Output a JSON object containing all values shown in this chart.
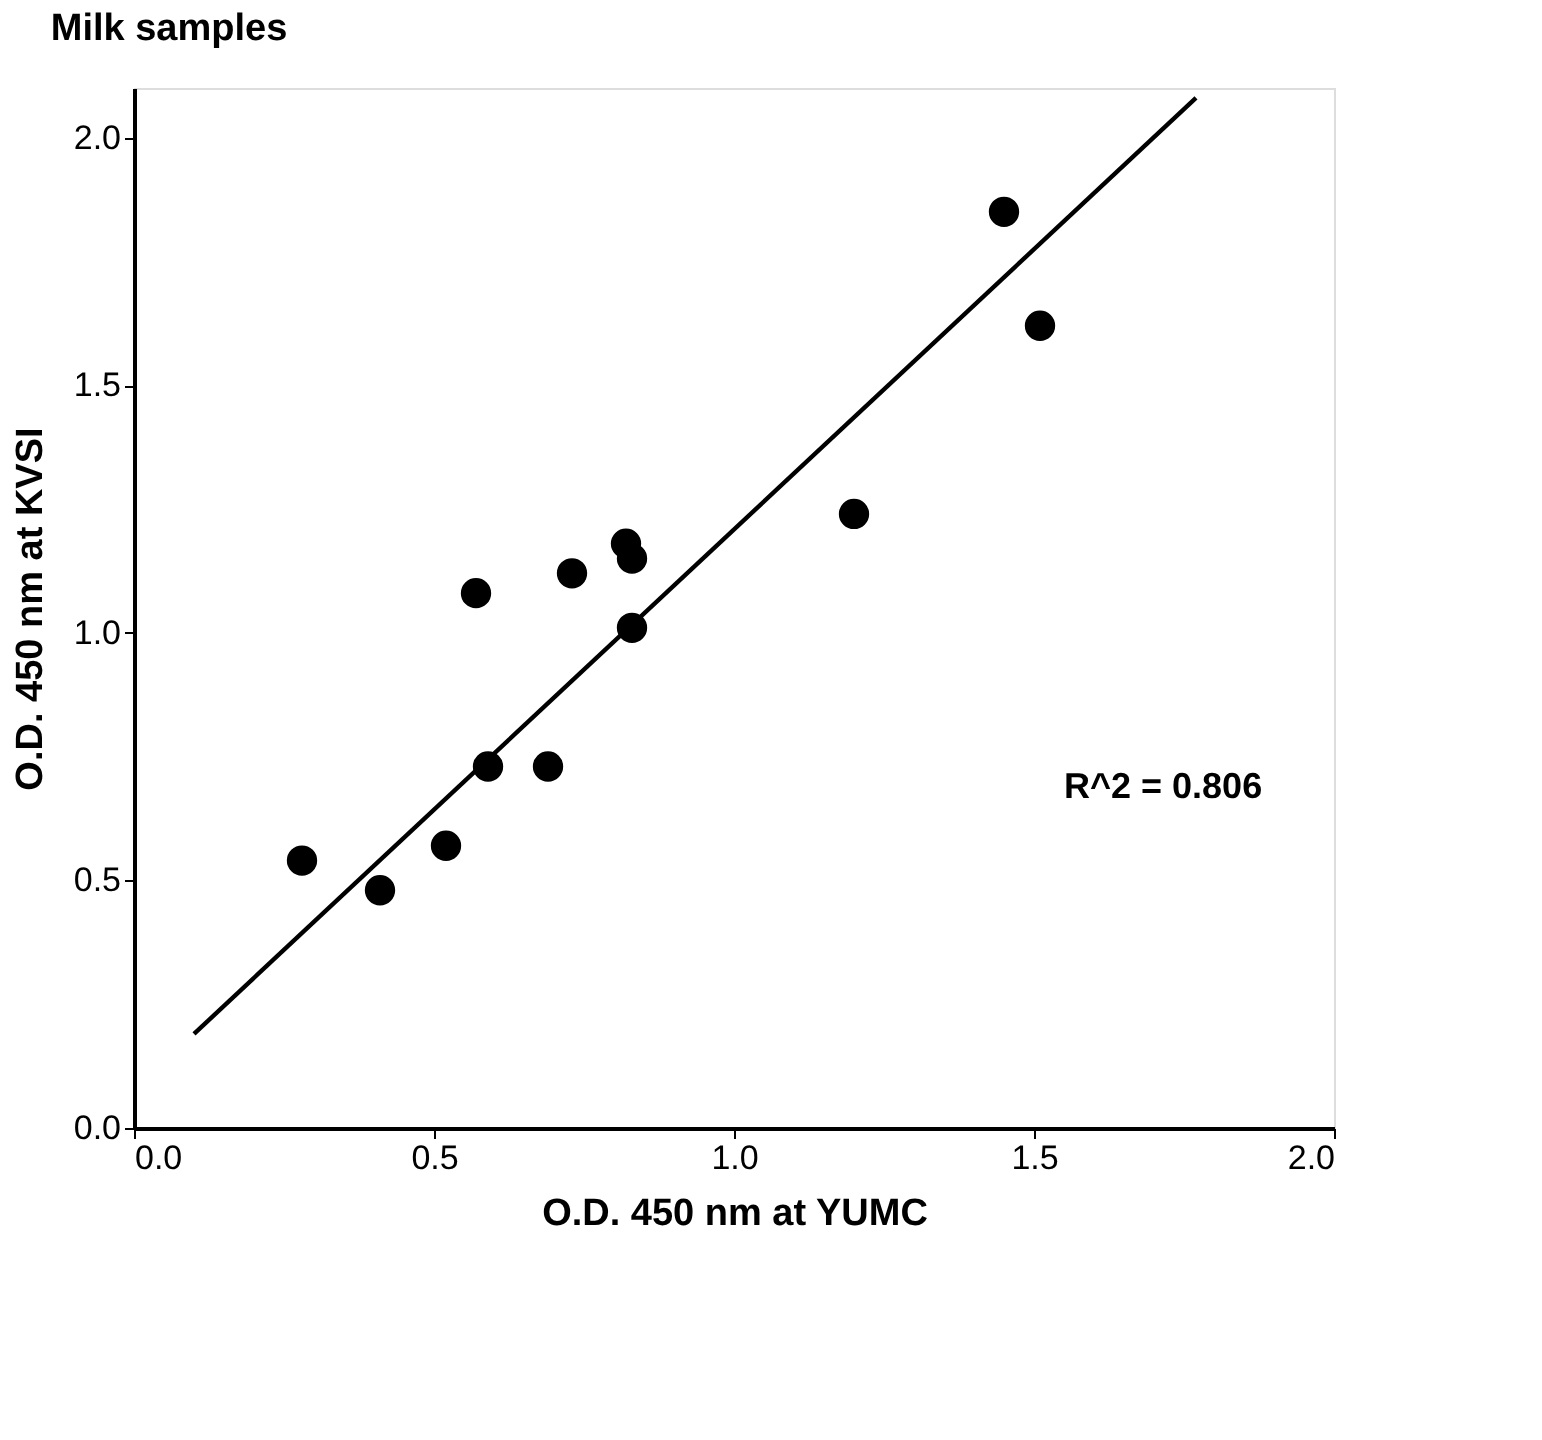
{
  "chart_data": {
    "type": "scatter",
    "title": "Milk samples",
    "xlabel": "O.D. 450 nm at YUMC",
    "ylabel": "O.D. 450 nm at KVSI",
    "xlim": [
      0,
      2
    ],
    "ylim": [
      0,
      2.1
    ],
    "xticks": [
      {
        "value": 0,
        "label": "0.0"
      },
      {
        "value": 0.5,
        "label": "0.5"
      },
      {
        "value": 1,
        "label": "1.0"
      },
      {
        "value": 1.5,
        "label": "1.5"
      },
      {
        "value": 2,
        "label": "2.0"
      }
    ],
    "yticks": [
      {
        "value": 0,
        "label": "0.0"
      },
      {
        "value": 0.5,
        "label": "0.5"
      },
      {
        "value": 1,
        "label": "1.0"
      },
      {
        "value": 1.5,
        "label": "1.5"
      },
      {
        "value": 2,
        "label": "2.0"
      }
    ],
    "grid": false,
    "series": [
      {
        "marker": "circle",
        "color": "#000000",
        "x": [
          0.28,
          0.41,
          0.52,
          0.57,
          0.59,
          0.69,
          0.73,
          0.82,
          0.83,
          0.83,
          1.2,
          1.51,
          1.45
        ],
        "values": [
          0.54,
          0.48,
          0.57,
          1.08,
          0.73,
          0.73,
          1.12,
          1.18,
          1.15,
          1.01,
          1.24,
          1.62,
          1.85
        ]
      },
      {
        "type": "line",
        "marker": "none",
        "color": "#000000",
        "x": [
          0.1,
          1.77
        ],
        "values": [
          0.19,
          2.08
        ],
        "line_style": "solid"
      }
    ],
    "annotations": [
      "R^2 = 0.806"
    ]
  }
}
